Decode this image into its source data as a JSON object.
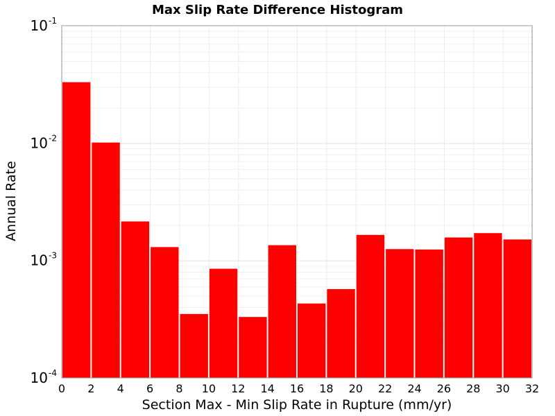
{
  "chart_data": {
    "type": "bar",
    "title": "Max Slip Rate Difference Histogram",
    "xlabel": "Section Max - Min Slip Rate in Rupture (mm/yr)",
    "ylabel": "Annual Rate",
    "y_scale": "log",
    "xlim": [
      0,
      32
    ],
    "ylim": [
      0.0001,
      0.1
    ],
    "grid": true,
    "bar_color": "#ff0000",
    "bin_width": 2,
    "x_ticks": [
      0,
      2,
      4,
      6,
      8,
      10,
      12,
      14,
      16,
      18,
      20,
      22,
      24,
      26,
      28,
      30,
      32
    ],
    "y_ticks": [
      {
        "base": "10",
        "exp": "-4",
        "value": 0.0001
      },
      {
        "base": "10",
        "exp": "-3",
        "value": 0.001
      },
      {
        "base": "10",
        "exp": "-2",
        "value": 0.01
      },
      {
        "base": "10",
        "exp": "-1",
        "value": 0.1
      }
    ],
    "bins": [
      {
        "x_start": 0,
        "value": 0.033
      },
      {
        "x_start": 2,
        "value": 0.0101
      },
      {
        "x_start": 4,
        "value": 0.00215
      },
      {
        "x_start": 6,
        "value": 0.0013
      },
      {
        "x_start": 8,
        "value": 0.00035
      },
      {
        "x_start": 10,
        "value": 0.00085
      },
      {
        "x_start": 12,
        "value": 0.00033
      },
      {
        "x_start": 14,
        "value": 0.00135
      },
      {
        "x_start": 16,
        "value": 0.00043
      },
      {
        "x_start": 18,
        "value": 0.00057
      },
      {
        "x_start": 20,
        "value": 0.00165
      },
      {
        "x_start": 22,
        "value": 0.00125
      },
      {
        "x_start": 24,
        "value": 0.00124
      },
      {
        "x_start": 26,
        "value": 0.00157
      },
      {
        "x_start": 28,
        "value": 0.00171
      },
      {
        "x_start": 30,
        "value": 0.00151
      }
    ]
  }
}
